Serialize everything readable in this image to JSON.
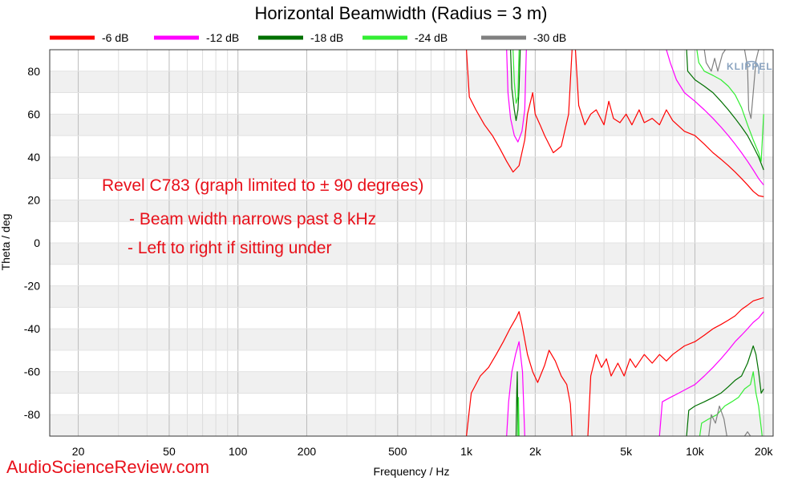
{
  "chart_data": {
    "type": "line",
    "title": "Horizontal Beamwidth (Radius = 3 m)",
    "xlabel": "Frequency / Hz",
    "ylabel": "Theta / deg",
    "xscale": "log",
    "xlim": [
      15,
      22000
    ],
    "ylim": [
      -90,
      90
    ],
    "x_ticks": [
      {
        "value": 20,
        "label": "20"
      },
      {
        "value": 50,
        "label": "50"
      },
      {
        "value": 100,
        "label": "100"
      },
      {
        "value": 200,
        "label": "200"
      },
      {
        "value": 500,
        "label": "500"
      },
      {
        "value": 1000,
        "label": "1k"
      },
      {
        "value": 2000,
        "label": "2k"
      },
      {
        "value": 5000,
        "label": "5k"
      },
      {
        "value": 10000,
        "label": "10k"
      },
      {
        "value": 20000,
        "label": "20k"
      }
    ],
    "y_ticks": [
      {
        "value": 80,
        "label": "80"
      },
      {
        "value": 60,
        "label": "60"
      },
      {
        "value": 40,
        "label": "40"
      },
      {
        "value": 20,
        "label": "20"
      },
      {
        "value": 0,
        "label": "0"
      },
      {
        "value": -20,
        "label": "-20"
      },
      {
        "value": -40,
        "label": "-40"
      },
      {
        "value": -60,
        "label": "-60"
      },
      {
        "value": -80,
        "label": "-80"
      }
    ],
    "grid": true,
    "legend_position": "top",
    "series": [
      {
        "name": "-6 dB",
        "color": "#ff0000",
        "segments": [
          [
            [
              1000,
              90
            ],
            [
              1030,
              68
            ],
            [
              1100,
              62
            ],
            [
              1200,
              55
            ],
            [
              1300,
              50
            ],
            [
              1400,
              44
            ],
            [
              1500,
              38
            ],
            [
              1600,
              33
            ],
            [
              1700,
              36
            ],
            [
              1800,
              48
            ],
            [
              1850,
              60
            ],
            [
              1950,
              70
            ],
            [
              2000,
              60
            ],
            [
              2100,
              55
            ],
            [
              2200,
              50
            ],
            [
              2400,
              42
            ],
            [
              2600,
              45
            ],
            [
              2800,
              60
            ],
            [
              2900,
              90
            ]
          ],
          [
            [
              3000,
              90
            ],
            [
              3100,
              64
            ],
            [
              3300,
              55
            ],
            [
              3500,
              60
            ],
            [
              3700,
              62
            ],
            [
              4000,
              55
            ],
            [
              4200,
              66
            ],
            [
              4400,
              58
            ],
            [
              4700,
              56
            ],
            [
              5000,
              60
            ],
            [
              5300,
              55
            ],
            [
              5700,
              62
            ],
            [
              6000,
              56
            ],
            [
              6500,
              58
            ],
            [
              7000,
              55
            ],
            [
              7500,
              62
            ],
            [
              8000,
              57
            ],
            [
              9000,
              52
            ],
            [
              10000,
              50
            ],
            [
              11000,
              46
            ],
            [
              12000,
              42
            ],
            [
              13000,
              39
            ],
            [
              14000,
              36
            ],
            [
              15000,
              33
            ],
            [
              16000,
              30
            ],
            [
              17000,
              27
            ],
            [
              18000,
              24
            ],
            [
              19000,
              22
            ],
            [
              20000,
              21.5
            ]
          ],
          [
            [
              1000,
              -90
            ],
            [
              1050,
              -70
            ],
            [
              1150,
              -62
            ],
            [
              1250,
              -58
            ],
            [
              1350,
              -52
            ],
            [
              1450,
              -46
            ],
            [
              1550,
              -40
            ],
            [
              1650,
              -35
            ],
            [
              1700,
              -32
            ],
            [
              1750,
              -38
            ],
            [
              1850,
              -52
            ],
            [
              1950,
              -60
            ],
            [
              2050,
              -65
            ],
            [
              2200,
              -57
            ],
            [
              2300,
              -50
            ],
            [
              2450,
              -55
            ],
            [
              2600,
              -62
            ],
            [
              2750,
              -66
            ],
            [
              2850,
              -75
            ],
            [
              2900,
              -90
            ]
          ],
          [
            [
              3400,
              -90
            ],
            [
              3500,
              -62
            ],
            [
              3700,
              -52
            ],
            [
              3900,
              -58
            ],
            [
              4100,
              -54
            ],
            [
              4300,
              -62
            ],
            [
              4600,
              -56
            ],
            [
              4900,
              -62
            ],
            [
              5200,
              -54
            ],
            [
              5500,
              -58
            ],
            [
              6000,
              -52
            ],
            [
              6500,
              -56
            ],
            [
              7000,
              -52
            ],
            [
              7500,
              -55
            ],
            [
              8000,
              -52
            ],
            [
              9000,
              -48
            ],
            [
              10000,
              -46
            ],
            [
              11000,
              -43
            ],
            [
              12000,
              -40
            ],
            [
              13000,
              -38
            ],
            [
              14000,
              -36
            ],
            [
              15000,
              -34
            ],
            [
              16000,
              -31
            ],
            [
              17000,
              -29
            ],
            [
              18000,
              -27
            ],
            [
              20000,
              -25.5
            ]
          ]
        ]
      },
      {
        "name": "-12 dB",
        "color": "#ff00ff",
        "segments": [
          [
            [
              1500,
              90
            ],
            [
              1520,
              70
            ],
            [
              1560,
              58
            ],
            [
              1620,
              50
            ],
            [
              1680,
              47
            ],
            [
              1750,
              52
            ],
            [
              1800,
              62
            ],
            [
              1830,
              90
            ]
          ],
          [
            [
              7500,
              90
            ],
            [
              7800,
              84
            ],
            [
              8300,
              76
            ],
            [
              9000,
              70
            ],
            [
              10000,
              66
            ],
            [
              11000,
              62
            ],
            [
              12000,
              58
            ],
            [
              13000,
              54
            ],
            [
              14000,
              50
            ],
            [
              15000,
              46
            ],
            [
              16000,
              42
            ],
            [
              17000,
              38
            ],
            [
              18000,
              34
            ],
            [
              19000,
              30
            ],
            [
              20000,
              27
            ]
          ],
          [
            [
              1500,
              -90
            ],
            [
              1530,
              -74
            ],
            [
              1580,
              -60
            ],
            [
              1640,
              -52
            ],
            [
              1700,
              -46
            ],
            [
              1760,
              -60
            ],
            [
              1800,
              -90
            ]
          ],
          [
            [
              7000,
              -90
            ],
            [
              7200,
              -74
            ],
            [
              7800,
              -72
            ],
            [
              8500,
              -70
            ],
            [
              9200,
              -68
            ],
            [
              10000,
              -66
            ],
            [
              11000,
              -62
            ],
            [
              12000,
              -58
            ],
            [
              13000,
              -54
            ],
            [
              14000,
              -50
            ],
            [
              15000,
              -46
            ],
            [
              16000,
              -43
            ],
            [
              17000,
              -40
            ],
            [
              18000,
              -37
            ],
            [
              19000,
              -35
            ],
            [
              20000,
              -32
            ]
          ]
        ]
      },
      {
        "name": "-18 dB",
        "color": "#007000",
        "segments": [
          [
            [
              1560,
              90
            ],
            [
              1580,
              72
            ],
            [
              1620,
              62
            ],
            [
              1650,
              57
            ],
            [
              1680,
              62
            ],
            [
              1700,
              72
            ],
            [
              1720,
              90
            ]
          ],
          [
            [
              9200,
              90
            ],
            [
              9300,
              80
            ],
            [
              10000,
              76
            ],
            [
              11000,
              73
            ],
            [
              12000,
              70
            ],
            [
              13000,
              66
            ],
            [
              14000,
              62
            ],
            [
              15000,
              58
            ],
            [
              16000,
              54
            ],
            [
              17000,
              50
            ],
            [
              18000,
              45
            ],
            [
              19000,
              40
            ],
            [
              20000,
              34
            ]
          ],
          [
            [
              1650,
              -90
            ],
            [
              1660,
              -70
            ],
            [
              1670,
              -60
            ],
            [
              1680,
              -90
            ]
          ],
          [
            [
              9200,
              -90
            ],
            [
              9400,
              -78
            ],
            [
              10000,
              -76
            ],
            [
              11000,
              -74
            ],
            [
              12000,
              -72
            ],
            [
              13000,
              -70
            ],
            [
              14000,
              -67
            ],
            [
              15000,
              -64
            ],
            [
              16000,
              -62
            ],
            [
              17000,
              -56
            ],
            [
              18000,
              -48
            ],
            [
              18500,
              -52
            ],
            [
              19000,
              -60
            ],
            [
              19500,
              -70
            ],
            [
              20000,
              -68
            ]
          ]
        ]
      },
      {
        "name": "-24 dB",
        "color": "#33ee33",
        "segments": [
          [
            [
              1600,
              90
            ],
            [
              1620,
              75
            ],
            [
              1650,
              65
            ],
            [
              1680,
              68
            ],
            [
              1700,
              90
            ]
          ],
          [
            [
              10200,
              90
            ],
            [
              10400,
              84
            ],
            [
              11000,
              80
            ],
            [
              12000,
              78
            ],
            [
              13000,
              76
            ],
            [
              14000,
              73
            ],
            [
              15000,
              69
            ],
            [
              16000,
              63
            ],
            [
              17000,
              55
            ],
            [
              18000,
              48
            ],
            [
              19000,
              42
            ],
            [
              19500,
              38
            ],
            [
              20000,
              60
            ]
          ],
          [
            [
              1680,
              -90
            ],
            [
              1690,
              -72
            ],
            [
              1700,
              -90
            ]
          ],
          [
            [
              10500,
              -90
            ],
            [
              10700,
              -84
            ],
            [
              11500,
              -82
            ],
            [
              12500,
              -80
            ],
            [
              13500,
              -76
            ],
            [
              14500,
              -74
            ],
            [
              15500,
              -72
            ],
            [
              16500,
              -68
            ],
            [
              17500,
              -66
            ],
            [
              18000,
              -60
            ],
            [
              18500,
              -70
            ],
            [
              19000,
              -76
            ],
            [
              19500,
              -86
            ],
            [
              19700,
              -90
            ]
          ]
        ]
      },
      {
        "name": "-30 dB",
        "color": "#808080",
        "segments": [
          [
            [
              11000,
              90
            ],
            [
              11200,
              84
            ],
            [
              11800,
              80
            ],
            [
              12200,
              86
            ],
            [
              12600,
              80
            ],
            [
              13200,
              88
            ],
            [
              13600,
              90
            ]
          ],
          [
            [
              16500,
              90
            ],
            [
              17000,
              82
            ],
            [
              17200,
              62
            ],
            [
              17600,
              58
            ],
            [
              18000,
              70
            ],
            [
              18500,
              85
            ],
            [
              19000,
              90
            ]
          ],
          [
            [
              11500,
              -90
            ],
            [
              11800,
              -80
            ],
            [
              12300,
              -84
            ],
            [
              12800,
              -76
            ],
            [
              13400,
              -82
            ],
            [
              13800,
              -90
            ]
          ],
          [
            [
              16500,
              -90
            ],
            [
              17000,
              -88
            ],
            [
              17500,
              -90
            ]
          ]
        ]
      }
    ]
  },
  "annotations": {
    "title": "Revel C783 (graph limited to ± 90 degrees)",
    "line1": "- Beam width narrows past 8 kHz",
    "line2": "- Left to right if sitting under"
  },
  "watermark": "AudioScienceReview.com",
  "logo_text": "KLIPPEL",
  "colors": {
    "annotation": "#e8101a",
    "band": "#f0f0f0",
    "grid": "#cccccc"
  }
}
